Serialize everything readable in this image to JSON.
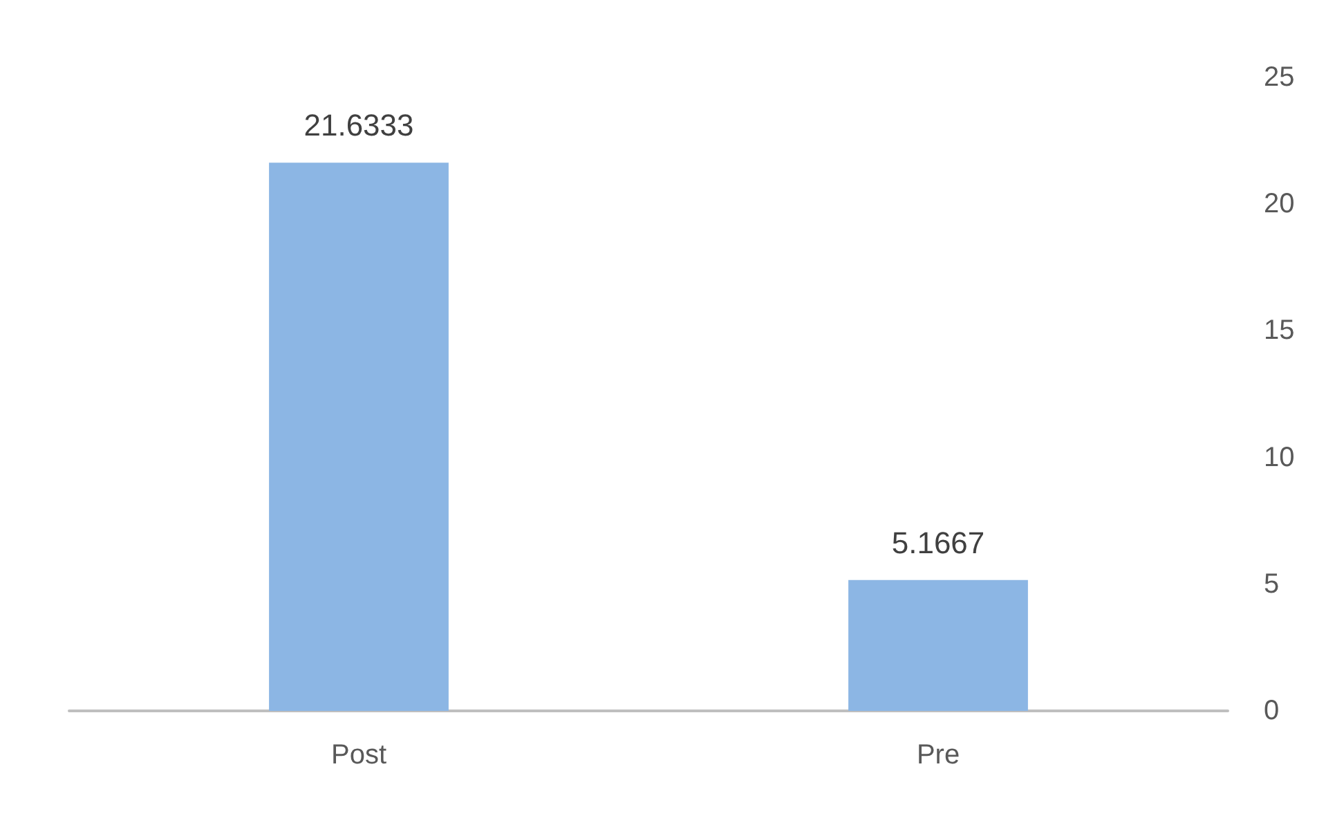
{
  "chart_data": {
    "type": "bar",
    "categories": [
      "Post",
      "Pre"
    ],
    "values": [
      21.6333,
      5.1667
    ],
    "color": "#8cb6e4",
    "ylim": [
      0,
      25
    ],
    "yticks": [
      0,
      5,
      10,
      15,
      20,
      25
    ],
    "grid": false,
    "data_labels": true
  }
}
